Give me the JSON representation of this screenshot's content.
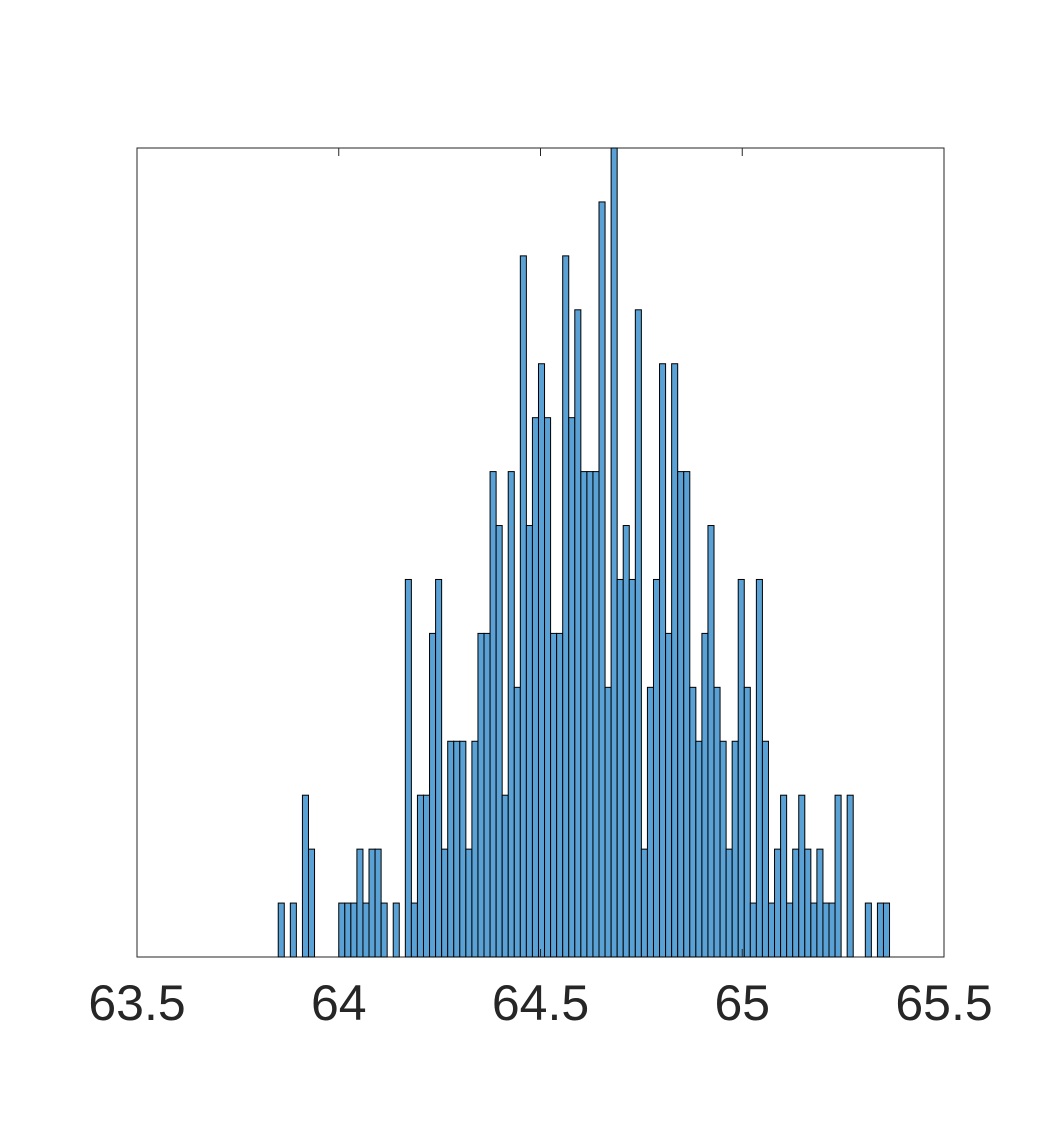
{
  "chart_data": {
    "type": "histogram",
    "color": "#5aa2d5",
    "edgecolor": "#000000",
    "bins": [
      63.85,
      63.865,
      63.88,
      63.895,
      63.91,
      63.925,
      63.94,
      63.955,
      63.97,
      63.985,
      64,
      64.015,
      64.03,
      64.045,
      64.06,
      64.075,
      64.09,
      64.105,
      64.12,
      64.135,
      64.15,
      64.165,
      64.18,
      64.195,
      64.21,
      64.225,
      64.24,
      64.255,
      64.27,
      64.285,
      64.3,
      64.315,
      64.33,
      64.345,
      64.36,
      64.375,
      64.39,
      64.405,
      64.42,
      64.435,
      64.45,
      64.465,
      64.48,
      64.495,
      64.51,
      64.525,
      64.54,
      64.555,
      64.57,
      64.585,
      64.6,
      64.615,
      64.63,
      64.645,
      64.66,
      64.675,
      64.69,
      64.705,
      64.72,
      64.735,
      64.75,
      64.765,
      64.78,
      64.795,
      64.81,
      64.825,
      64.84,
      64.855,
      64.87,
      64.885,
      64.9,
      64.915,
      64.93,
      64.945,
      64.96,
      64.975,
      64.99,
      65.005,
      65.02,
      65.035,
      65.05,
      65.065,
      65.08,
      65.095,
      65.11,
      65.125,
      65.14,
      65.155,
      65.17,
      65.185,
      65.2,
      65.215,
      65.23,
      65.245,
      65.26,
      65.275,
      65.29,
      65.305,
      65.32,
      65.335,
      65.35,
      65.365
    ],
    "values": [
      1,
      0,
      1,
      0,
      3,
      2,
      0,
      0,
      0,
      0,
      1,
      1,
      1,
      2,
      1,
      2,
      2,
      1,
      0,
      1,
      0,
      7,
      1,
      3,
      3,
      6,
      7,
      2,
      4,
      4,
      4,
      2,
      4,
      6,
      6,
      9,
      8,
      3,
      9,
      5,
      13,
      8,
      10,
      11,
      10,
      6,
      6,
      13,
      10,
      12,
      9,
      9,
      9,
      14,
      5,
      15,
      7,
      8,
      7,
      12,
      2,
      5,
      7,
      11,
      6,
      11,
      9,
      9,
      5,
      4,
      6,
      8,
      5,
      4,
      2,
      4,
      7,
      5,
      1,
      7,
      4,
      1,
      2,
      3,
      1,
      2,
      3,
      2,
      1,
      2,
      1,
      1,
      3,
      0,
      3,
      0,
      0,
      1,
      0,
      1,
      1
    ],
    "xlim": [
      63.5,
      65.5
    ],
    "xticks": [
      63.5,
      64,
      64.5,
      65,
      65.5
    ],
    "ylim": [
      0,
      15
    ]
  }
}
